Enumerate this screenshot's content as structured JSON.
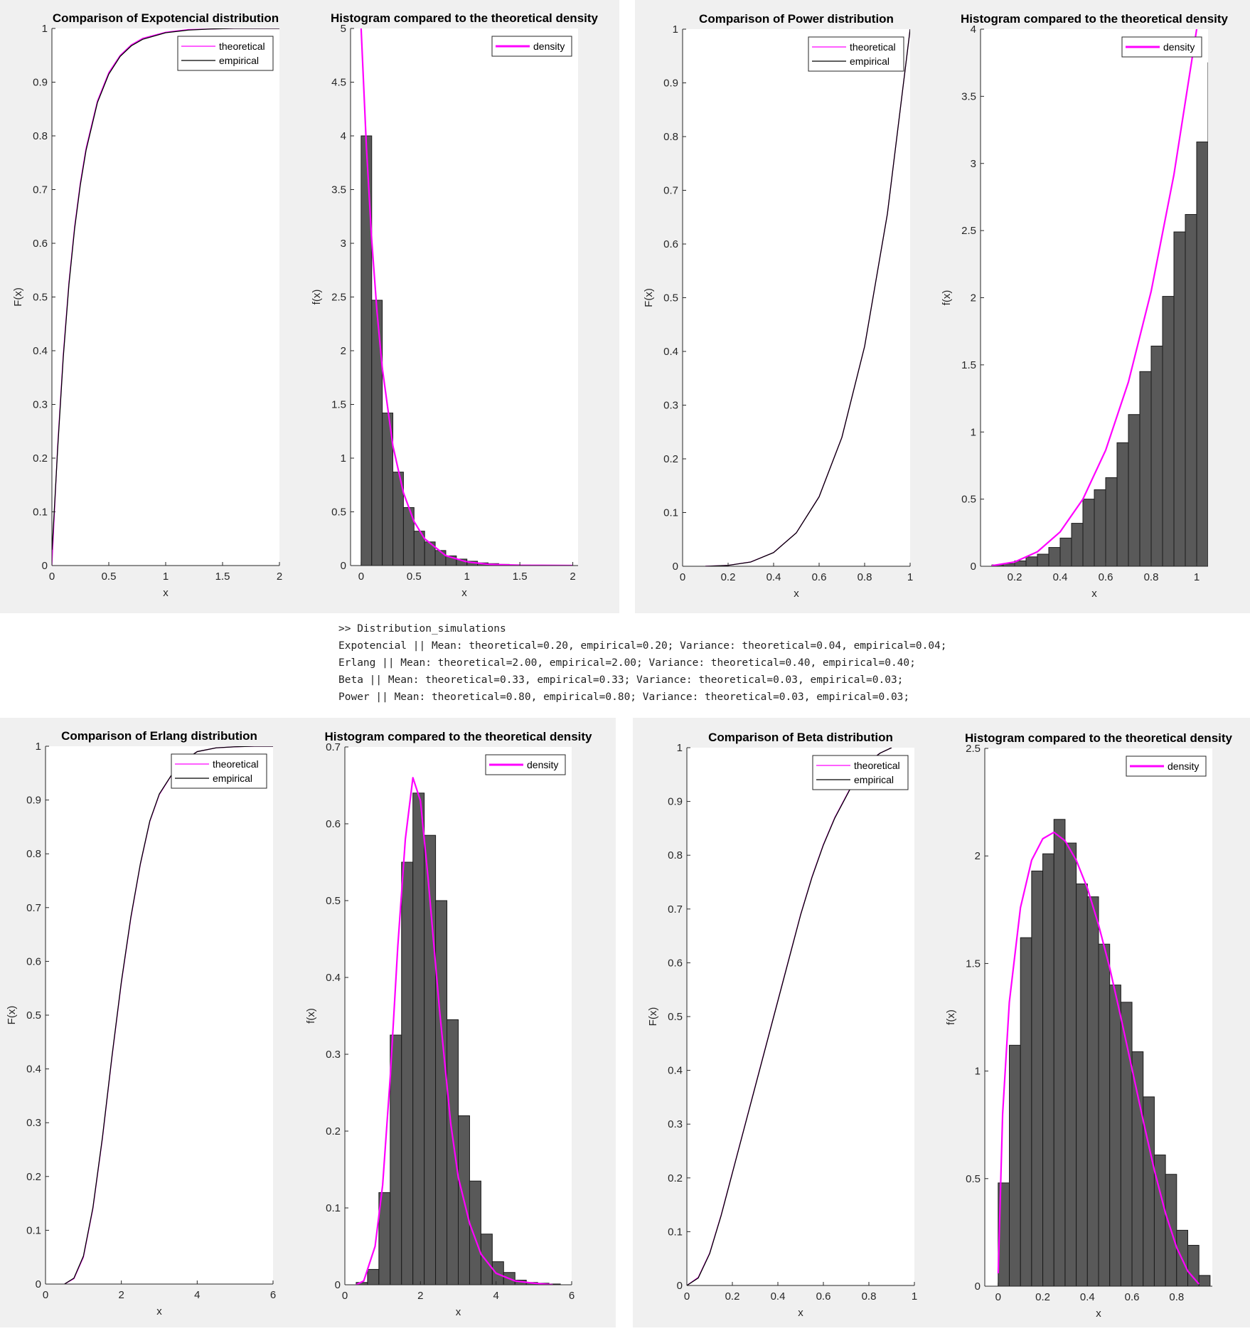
{
  "console": {
    "lines": [
      ">> Distribution_simulations",
      "Expotencial || Mean: theoretical=0.20, empirical=0.20; Variance: theoretical=0.04, empirical=0.04;",
      "Erlang || Mean: theoretical=2.00, empirical=2.00; Variance: theoretical=0.40, empirical=0.40;",
      "Beta || Mean: theoretical=0.33, empirical=0.33; Variance: theoretical=0.03, empirical=0.03;",
      "Power || Mean: theoretical=0.80, empirical=0.80; Variance: theoretical=0.03, empirical=0.03;"
    ]
  },
  "colors": {
    "figure_bg": "#f0f0f0",
    "axes_bg": "#ffffff",
    "theoretical": "#ff00ff",
    "empirical": "#000000",
    "bar_fill": "#595959",
    "bar_edge": "#1a1a1a"
  },
  "chart_data": [
    {
      "id": "expo-cdf",
      "type": "line",
      "title": "Comparison of Expotencial distribution",
      "xlabel": "x",
      "ylabel": "F(x)",
      "xlim": [
        0,
        2
      ],
      "ylim": [
        0,
        1
      ],
      "xticks": [
        0,
        0.5,
        1,
        1.5,
        2
      ],
      "xtick_labels": [
        "0",
        "0.5",
        "1",
        "1.5",
        "2"
      ],
      "yticks": [
        0,
        0.1,
        0.2,
        0.3,
        0.4,
        0.5,
        0.6,
        0.7,
        0.8,
        0.9,
        1
      ],
      "ytick_labels": [
        "0",
        "0.1",
        "0.2",
        "0.3",
        "0.4",
        "0.5",
        "0.6",
        "0.7",
        "0.8",
        "0.9",
        "1"
      ],
      "legend": "top-right",
      "series": [
        {
          "name": "theoretical",
          "color": "#ff00ff",
          "x": [
            0,
            0.05,
            0.1,
            0.15,
            0.2,
            0.25,
            0.3,
            0.4,
            0.5,
            0.6,
            0.7,
            0.8,
            1.0,
            1.2,
            1.4,
            1.6,
            1.8,
            2.0
          ],
          "y": [
            0,
            0.221,
            0.393,
            0.528,
            0.632,
            0.713,
            0.777,
            0.865,
            0.918,
            0.95,
            0.97,
            0.982,
            0.993,
            0.998,
            0.999,
            1.0,
            1.0,
            1.0
          ]
        },
        {
          "name": "empirical",
          "color": "#000000",
          "x": [
            0,
            0.002,
            0.05,
            0.1,
            0.15,
            0.2,
            0.25,
            0.3,
            0.4,
            0.5,
            0.6,
            0.7,
            0.8,
            1.0,
            1.2,
            1.4,
            1.6,
            1.8,
            2.0
          ],
          "y": [
            0.03,
            0.03,
            0.215,
            0.388,
            0.524,
            0.628,
            0.709,
            0.773,
            0.862,
            0.915,
            0.948,
            0.968,
            0.98,
            0.992,
            0.997,
            0.999,
            1.0,
            1.0,
            1.0
          ]
        }
      ]
    },
    {
      "id": "expo-hist",
      "type": "bar",
      "title": "Histogram compared to the theoretical density",
      "xlabel": "x",
      "ylabel": "f(x)",
      "xlim": [
        -0.1,
        2.05
      ],
      "ylim": [
        0,
        5
      ],
      "xticks": [
        0,
        0.5,
        1,
        1.5,
        2
      ],
      "xtick_labels": [
        "0",
        "0.5",
        "1",
        "1.5",
        "2"
      ],
      "yticks": [
        0,
        0.5,
        1,
        1.5,
        2,
        2.5,
        3,
        3.5,
        4,
        4.5,
        5
      ],
      "ytick_labels": [
        "0",
        "0.5",
        "1",
        "1.5",
        "2",
        "2.5",
        "3",
        "3.5",
        "4",
        "4.5",
        "5"
      ],
      "legend": "top-right",
      "bin_start": 0,
      "bin_width": 0.1,
      "values": [
        4.0,
        2.47,
        1.42,
        0.87,
        0.54,
        0.32,
        0.22,
        0.14,
        0.09,
        0.06,
        0.04,
        0.025,
        0.018,
        0.011,
        0.007,
        0.004,
        0.003,
        0.002,
        0.001,
        0.001
      ],
      "series": [
        {
          "name": "density",
          "color": "#ff00ff",
          "x": [
            0,
            0.05,
            0.1,
            0.15,
            0.2,
            0.3,
            0.4,
            0.5,
            0.6,
            0.8,
            1.0,
            1.2,
            1.5,
            2.0
          ],
          "y": [
            5.0,
            3.894,
            3.033,
            2.362,
            1.839,
            1.116,
            0.677,
            0.41,
            0.249,
            0.092,
            0.034,
            0.012,
            0.003,
            0.0002
          ]
        }
      ]
    },
    {
      "id": "power-cdf",
      "type": "line",
      "title": "Comparison of Power distribution",
      "xlabel": "x",
      "ylabel": "F(x)",
      "xlim": [
        0,
        1
      ],
      "ylim": [
        0,
        1
      ],
      "xticks": [
        0,
        0.2,
        0.4,
        0.6,
        0.8,
        1
      ],
      "xtick_labels": [
        "0",
        "0.2",
        "0.4",
        "0.6",
        "0.8",
        "1"
      ],
      "yticks": [
        0,
        0.1,
        0.2,
        0.3,
        0.4,
        0.5,
        0.6,
        0.7,
        0.8,
        0.9,
        1
      ],
      "ytick_labels": [
        "0",
        "0.1",
        "0.2",
        "0.3",
        "0.4",
        "0.5",
        "0.6",
        "0.7",
        "0.8",
        "0.9",
        "1"
      ],
      "legend": "top-right",
      "series": [
        {
          "name": "theoretical",
          "color": "#ff00ff",
          "x": [
            0.1,
            0.2,
            0.3,
            0.4,
            0.5,
            0.6,
            0.7,
            0.8,
            0.9,
            1.0
          ],
          "y": [
            0.0001,
            0.0016,
            0.0081,
            0.0256,
            0.0625,
            0.1296,
            0.2401,
            0.4096,
            0.6561,
            1.0
          ]
        },
        {
          "name": "empirical",
          "color": "#000000",
          "x": [
            0.1,
            0.2,
            0.3,
            0.4,
            0.5,
            0.6,
            0.7,
            0.8,
            0.9,
            1.0
          ],
          "y": [
            0.0,
            0.0016,
            0.008,
            0.0255,
            0.0623,
            0.1293,
            0.2398,
            0.4093,
            0.6558,
            1.0
          ]
        }
      ]
    },
    {
      "id": "power-hist",
      "type": "bar",
      "title": "Histogram compared to the theoretical density",
      "xlabel": "x",
      "ylabel": "f(x)",
      "xlim": [
        0.05,
        1.05
      ],
      "ylim": [
        0,
        4
      ],
      "xticks": [
        0.2,
        0.4,
        0.6,
        0.8,
        1
      ],
      "xtick_labels": [
        "0.2",
        "0.4",
        "0.6",
        "0.8",
        "1"
      ],
      "yticks": [
        0,
        0.5,
        1,
        1.5,
        2,
        2.5,
        3,
        3.5,
        4
      ],
      "ytick_labels": [
        "0",
        "0.5",
        "1",
        "1.5",
        "2",
        "2.5",
        "3",
        "3.5",
        "4"
      ],
      "legend": "top-right",
      "bin_start": 0.1,
      "bin_width": 0.05,
      "values": [
        0.01,
        0.02,
        0.04,
        0.07,
        0.09,
        0.14,
        0.21,
        0.32,
        0.5,
        0.57,
        0.66,
        0.92,
        1.13,
        1.45,
        1.64,
        2.01,
        2.49,
        2.62,
        3.16,
        3.75
      ],
      "series": [
        {
          "name": "density",
          "color": "#ff00ff",
          "x": [
            0.1,
            0.2,
            0.3,
            0.4,
            0.5,
            0.6,
            0.7,
            0.8,
            0.9,
            1.0
          ],
          "y": [
            0.004,
            0.032,
            0.108,
            0.256,
            0.5,
            0.864,
            1.372,
            2.048,
            2.916,
            4.0
          ]
        }
      ]
    },
    {
      "id": "erlang-cdf",
      "type": "line",
      "title": "Comparison of Erlang distribution",
      "xlabel": "x",
      "ylabel": "F(x)",
      "xlim": [
        0,
        6
      ],
      "ylim": [
        0,
        1
      ],
      "xticks": [
        0,
        2,
        4,
        6
      ],
      "xtick_labels": [
        "0",
        "2",
        "4",
        "6"
      ],
      "yticks": [
        0,
        0.1,
        0.2,
        0.3,
        0.4,
        0.5,
        0.6,
        0.7,
        0.8,
        0.9,
        1
      ],
      "ytick_labels": [
        "0",
        "0.1",
        "0.2",
        "0.3",
        "0.4",
        "0.5",
        "0.6",
        "0.7",
        "0.8",
        "0.9",
        "1"
      ],
      "legend": "top-right",
      "series": [
        {
          "name": "theoretical",
          "color": "#ff00ff",
          "x": [
            0.5,
            0.75,
            1.0,
            1.25,
            1.5,
            1.75,
            2.0,
            2.25,
            2.5,
            2.75,
            3.0,
            3.5,
            4.0,
            4.5,
            5.0,
            5.5,
            6.0
          ],
          "y": [
            0.0,
            0.01,
            0.05,
            0.14,
            0.27,
            0.42,
            0.56,
            0.68,
            0.78,
            0.86,
            0.91,
            0.966,
            0.99,
            0.997,
            0.999,
            1.0,
            1.0
          ]
        },
        {
          "name": "empirical",
          "color": "#000000",
          "x": [
            0.5,
            0.75,
            1.0,
            1.25,
            1.5,
            1.75,
            2.0,
            2.25,
            2.5,
            2.75,
            3.0,
            3.5,
            4.0,
            4.5,
            5.0,
            5.5,
            6.0
          ],
          "y": [
            0.0,
            0.011,
            0.052,
            0.142,
            0.272,
            0.422,
            0.562,
            0.682,
            0.781,
            0.861,
            0.911,
            0.966,
            0.99,
            0.997,
            0.999,
            1.0,
            1.0
          ]
        }
      ]
    },
    {
      "id": "erlang-hist",
      "type": "bar",
      "title": "Histogram compared to the theoretical density",
      "xlabel": "x",
      "ylabel": "f(x)",
      "xlim": [
        0,
        6
      ],
      "ylim": [
        0,
        0.7
      ],
      "xticks": [
        0,
        2,
        4,
        6
      ],
      "xtick_labels": [
        "0",
        "2",
        "4",
        "6"
      ],
      "yticks": [
        0,
        0.1,
        0.2,
        0.3,
        0.4,
        0.5,
        0.6,
        0.7
      ],
      "ytick_labels": [
        "0",
        "0.1",
        "0.2",
        "0.3",
        "0.4",
        "0.5",
        "0.6",
        "0.7"
      ],
      "legend": "top-right",
      "bin_start": 0.3,
      "bin_width": 0.3,
      "values": [
        0.003,
        0.02,
        0.12,
        0.325,
        0.55,
        0.64,
        0.585,
        0.5,
        0.345,
        0.22,
        0.135,
        0.066,
        0.03,
        0.016,
        0.006,
        0.003,
        0.002,
        0.001
      ],
      "series": [
        {
          "name": "density",
          "color": "#ff00ff",
          "x": [
            0.3,
            0.5,
            0.8,
            1.0,
            1.2,
            1.4,
            1.6,
            1.8,
            2.0,
            2.2,
            2.5,
            2.8,
            3.0,
            3.3,
            3.6,
            4.0,
            4.5,
            5.0,
            5.5
          ],
          "y": [
            0.0,
            0.005,
            0.05,
            0.13,
            0.27,
            0.44,
            0.58,
            0.66,
            0.63,
            0.53,
            0.36,
            0.21,
            0.14,
            0.08,
            0.04,
            0.015,
            0.005,
            0.002,
            0.0
          ]
        }
      ]
    },
    {
      "id": "beta-cdf",
      "type": "line",
      "title": "Comparison of Beta distribution",
      "xlabel": "x",
      "ylabel": "F(x)",
      "xlim": [
        0,
        1
      ],
      "ylim": [
        0,
        1
      ],
      "xticks": [
        0,
        0.2,
        0.4,
        0.6,
        0.8,
        1
      ],
      "xtick_labels": [
        "0",
        "0.2",
        "0.4",
        "0.6",
        "0.8",
        "1"
      ],
      "yticks": [
        0,
        0.1,
        0.2,
        0.3,
        0.4,
        0.5,
        0.6,
        0.7,
        0.8,
        0.9,
        1
      ],
      "ytick_labels": [
        "0",
        "0.1",
        "0.2",
        "0.3",
        "0.4",
        "0.5",
        "0.6",
        "0.7",
        "0.8",
        "0.9",
        "1"
      ],
      "legend": "top-right",
      "series": [
        {
          "name": "theoretical",
          "color": "#ff00ff",
          "x": [
            0,
            0.05,
            0.1,
            0.15,
            0.2,
            0.25,
            0.3,
            0.35,
            0.4,
            0.45,
            0.5,
            0.55,
            0.6,
            0.65,
            0.7,
            0.75,
            0.8,
            0.85,
            0.9
          ],
          "y": [
            0,
            0.015,
            0.06,
            0.13,
            0.21,
            0.29,
            0.37,
            0.45,
            0.53,
            0.61,
            0.69,
            0.76,
            0.82,
            0.87,
            0.91,
            0.95,
            0.975,
            0.99,
            1.0
          ]
        },
        {
          "name": "empirical",
          "color": "#000000",
          "x": [
            0,
            0.05,
            0.1,
            0.15,
            0.2,
            0.25,
            0.3,
            0.35,
            0.4,
            0.45,
            0.5,
            0.55,
            0.6,
            0.65,
            0.7,
            0.75,
            0.8,
            0.85,
            0.9
          ],
          "y": [
            0,
            0.014,
            0.059,
            0.129,
            0.209,
            0.289,
            0.369,
            0.449,
            0.529,
            0.609,
            0.689,
            0.759,
            0.819,
            0.869,
            0.909,
            0.949,
            0.974,
            0.99,
            1.0
          ]
        }
      ]
    },
    {
      "id": "beta-hist",
      "type": "bar",
      "title": "Histogram compared to the theoretical density",
      "xlabel": "x",
      "ylabel": "f(x)",
      "xlim": [
        -0.06,
        0.96
      ],
      "ylim": [
        0,
        2.5
      ],
      "xticks": [
        0,
        0.2,
        0.4,
        0.6,
        0.8
      ],
      "xtick_labels": [
        "0",
        "0.2",
        "0.4",
        "0.6",
        "0.8"
      ],
      "yticks": [
        0,
        0.5,
        1,
        1.5,
        2,
        2.5
      ],
      "ytick_labels": [
        "0",
        "0.5",
        "1",
        "1.5",
        "2",
        "2.5"
      ],
      "legend": "top-right",
      "bin_start": 0,
      "bin_width": 0.05,
      "values": [
        0.48,
        1.12,
        1.62,
        1.93,
        2.01,
        2.17,
        2.06,
        1.87,
        1.81,
        1.59,
        1.4,
        1.32,
        1.09,
        0.88,
        0.61,
        0.52,
        0.26,
        0.19,
        0.05
      ],
      "series": [
        {
          "name": "density",
          "color": "#ff00ff",
          "x": [
            0,
            0.02,
            0.05,
            0.1,
            0.15,
            0.2,
            0.25,
            0.3,
            0.35,
            0.4,
            0.45,
            0.5,
            0.55,
            0.6,
            0.65,
            0.7,
            0.75,
            0.8,
            0.85,
            0.9
          ],
          "y": [
            0.06,
            0.8,
            1.32,
            1.76,
            1.98,
            2.08,
            2.11,
            2.07,
            1.98,
            1.85,
            1.68,
            1.48,
            1.25,
            1.01,
            0.77,
            0.54,
            0.34,
            0.18,
            0.07,
            0.01
          ]
        }
      ]
    }
  ]
}
